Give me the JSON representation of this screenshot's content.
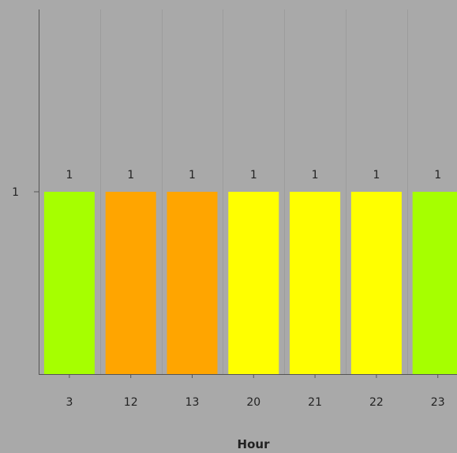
{
  "chart_data": {
    "type": "bar",
    "title": "",
    "xlabel": "Hour",
    "ylabel": "",
    "categories": [
      "3",
      "12",
      "13",
      "20",
      "21",
      "22",
      "23"
    ],
    "values": [
      1,
      1,
      1,
      1,
      1,
      1,
      1
    ],
    "data_labels": [
      "1",
      "1",
      "1",
      "1",
      "1",
      "1",
      "1"
    ],
    "bar_colors": [
      "#a6ff00",
      "#ffa500",
      "#ffa500",
      "#ffff00",
      "#ffff00",
      "#ffff00",
      "#a6ff00"
    ],
    "y_ticks": [
      1
    ],
    "y_tick_labels": [
      "1"
    ],
    "ylim": [
      0,
      2
    ],
    "grid": true,
    "background_color": "#a9a9a9"
  }
}
